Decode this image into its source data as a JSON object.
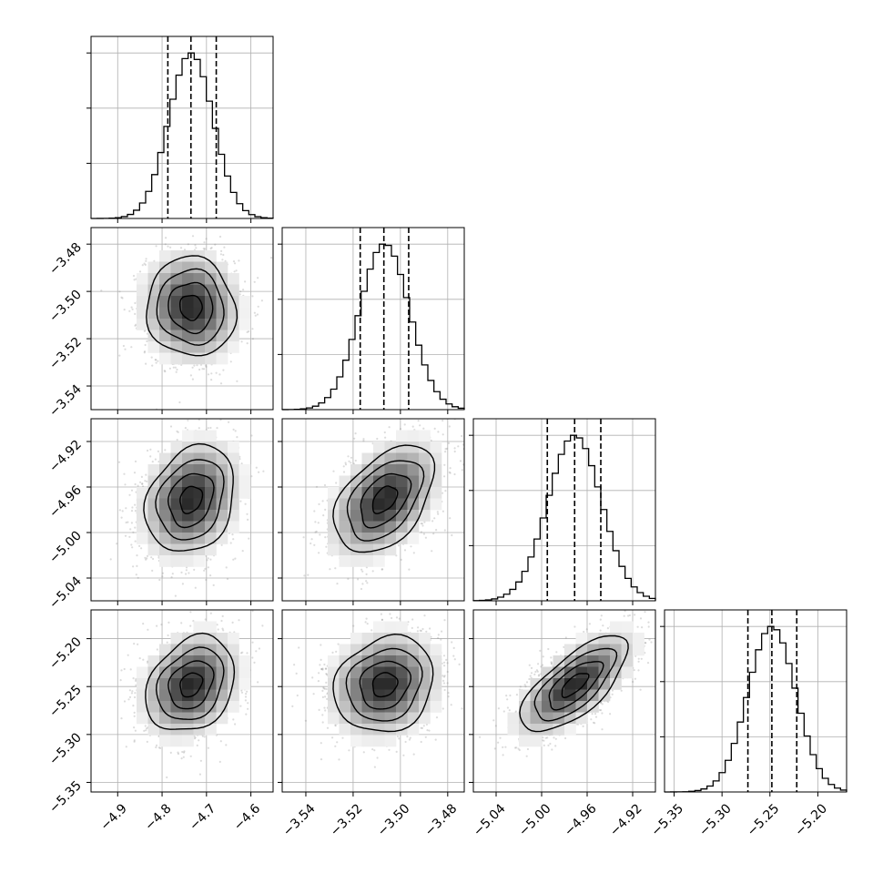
{
  "chart_data": {
    "type": "corner",
    "grid": true,
    "colors": {
      "line": "#000000",
      "grid": "#b0b0b0",
      "scatter": "#808080",
      "background": "#ffffff"
    },
    "parameters": [
      {
        "range": [
          -4.96,
          -4.55
        ],
        "ticks": [
          -4.9,
          -4.8,
          -4.7,
          -4.6
        ],
        "tick_labels": [
          "−4.9",
          "−4.8",
          "−4.7",
          "−4.6"
        ],
        "mean": -4.735,
        "sd": 0.05,
        "quantiles": [
          -4.787,
          -4.735,
          -4.678
        ]
      },
      {
        "range": [
          -3.55,
          -3.473
        ],
        "ticks": [
          -3.54,
          -3.52,
          -3.5,
          -3.48
        ],
        "tick_labels": [
          "−3.54",
          "−3.52",
          "−3.50",
          "−3.48"
        ],
        "mean": -3.5067,
        "sd": 0.0105,
        "quantiles": [
          -3.517,
          -3.507,
          -3.4965
        ]
      },
      {
        "range": [
          -5.06,
          -4.9
        ],
        "ticks": [
          -5.04,
          -5.0,
          -4.96,
          -4.92
        ],
        "tick_labels": [
          "−5.04",
          "−5.00",
          "−4.96",
          "−4.92"
        ],
        "mean": -4.971,
        "sd": 0.0235,
        "quantiles": [
          -4.995,
          -4.971,
          -4.948
        ]
      },
      {
        "range": [
          -5.36,
          -5.17
        ],
        "ticks": [
          -5.35,
          -5.3,
          -5.25,
          -5.2
        ],
        "tick_labels": [
          "−5.35",
          "−5.30",
          "−5.25",
          "−5.20"
        ],
        "mean": -5.248,
        "sd": 0.025,
        "quantiles": [
          -5.273,
          -5.248,
          -5.222
        ]
      }
    ],
    "correlations": [
      {
        "row": 1,
        "col": 0,
        "rho": -0.05
      },
      {
        "row": 2,
        "col": 0,
        "rho": 0.22
      },
      {
        "row": 2,
        "col": 1,
        "rho": 0.45
      },
      {
        "row": 3,
        "col": 0,
        "rho": 0.25
      },
      {
        "row": 3,
        "col": 1,
        "rho": 0.15
      },
      {
        "row": 3,
        "col": 2,
        "rho": 0.7
      }
    ],
    "diagonal": "histogram with dashed quantile lines (16%, 50%, 84%)",
    "off_diagonal": "scatter points with 2D histogram shading and contour levels"
  }
}
